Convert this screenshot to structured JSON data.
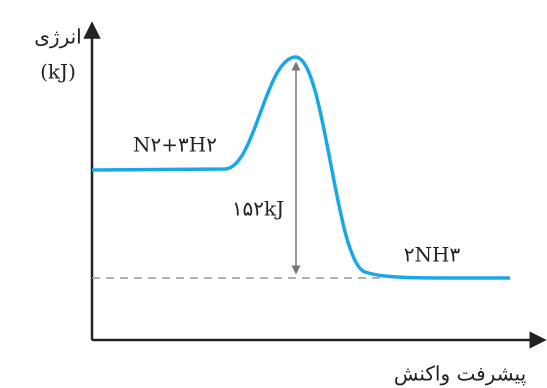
{
  "y_axis": {
    "label": "انرژی",
    "unit": "(kJ)"
  },
  "x_axis": {
    "label": "پیشرفت واکنش"
  },
  "reactants": "N۲+۳H۲",
  "products": "۲NH۳",
  "energy_change": "۱۵۲kJ"
}
